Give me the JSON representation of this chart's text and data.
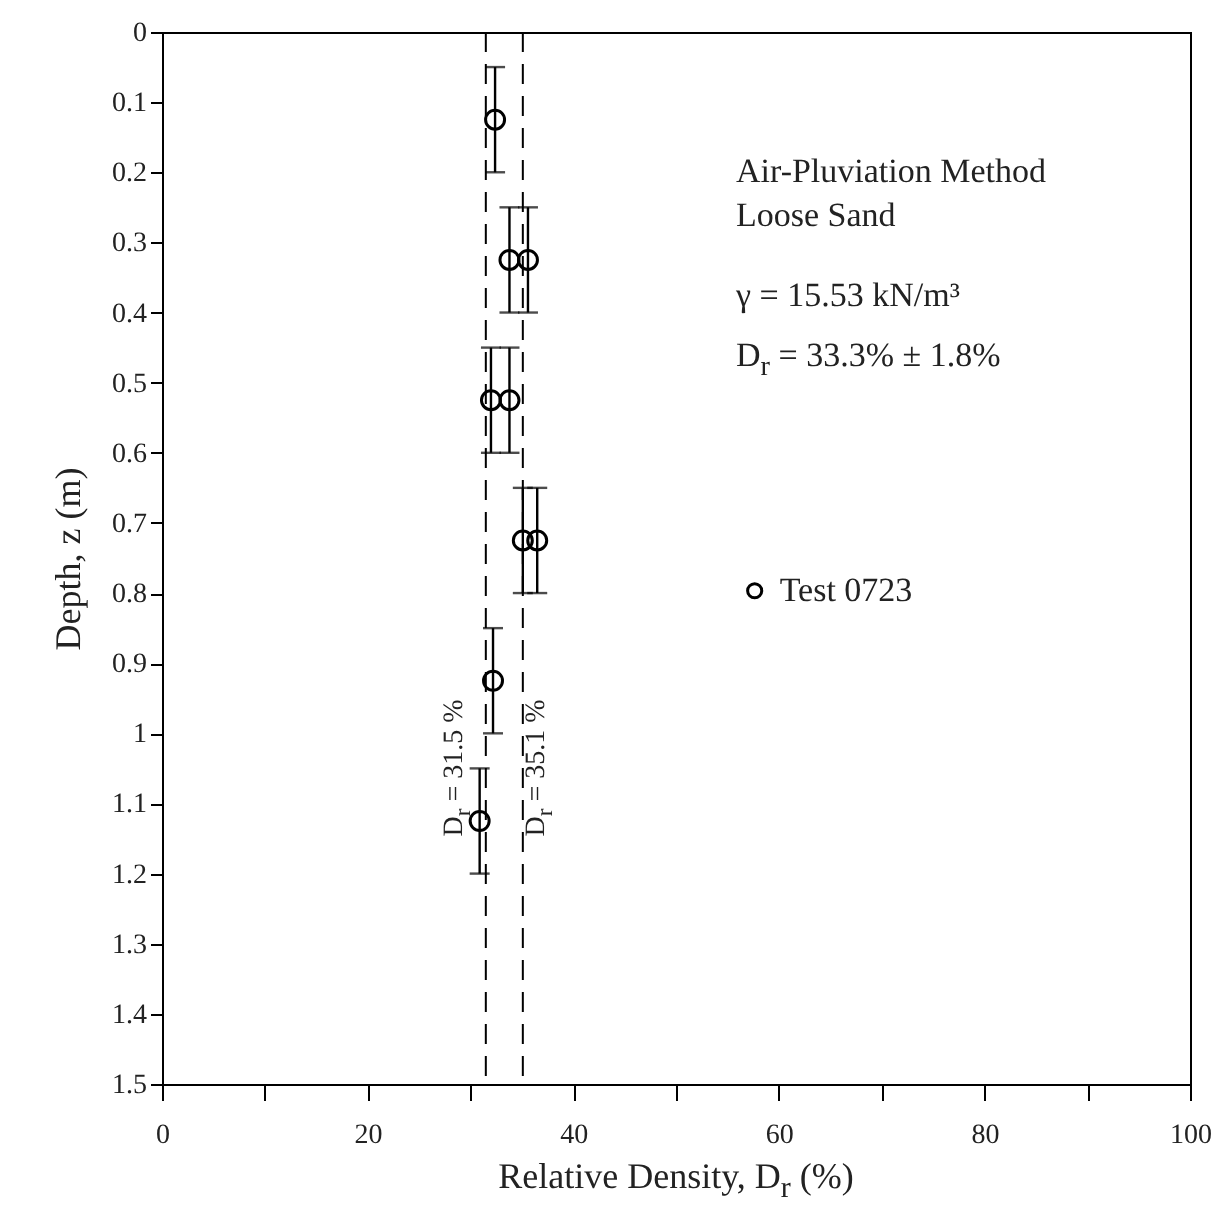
{
  "chart_data": {
    "type": "scatter",
    "xlabel": "Relative Density, D$_{r}$ (%)",
    "ylabel": "Depth, z (m)",
    "xlim": [
      0,
      100
    ],
    "xticks": [
      0,
      {
        "value": 10,
        "label": null
      },
      20,
      {
        "value": 30,
        "label": null
      },
      40,
      {
        "value": 50,
        "label": null
      },
      60,
      {
        "value": 70,
        "label": null
      },
      80,
      {
        "value": 90,
        "label": null
      },
      100
    ],
    "ylim": [
      1.5,
      0
    ],
    "yticks": [
      0,
      0.1,
      0.2,
      0.3,
      0.4,
      0.5,
      0.6,
      0.7,
      0.8,
      0.9,
      1,
      1.1,
      1.2,
      1.3,
      1.4,
      1.5
    ],
    "series": [
      {
        "name": "Test 0723",
        "color": "#000000",
        "x": [
          32.4,
          33.8,
          35.6,
          32.0,
          33.8,
          35.1,
          36.5,
          32.2,
          30.9
        ],
        "values": [
          0.125,
          0.325,
          0.325,
          0.525,
          0.525,
          0.725,
          0.725,
          0.925,
          1.125
        ],
        "errors": [
          0.075,
          0.075,
          0.075,
          0.075,
          0.075,
          0.075,
          0.075,
          0.075,
          0.075
        ]
      }
    ],
    "ref_lines": [
      {
        "axis": "x",
        "value": 31.5,
        "label": "D$_{r}$ = 31.5 %",
        "line_style": "dashed",
        "color": "#000000"
      },
      {
        "axis": "x",
        "value": 35.1,
        "label": "D$_{r}$ = 35.1 %",
        "line_style": "dashed",
        "color": "#000000"
      }
    ],
    "annotations": [
      "Air-Pluviation Method",
      "Loose Sand",
      "γ = 15.53 kN/m³",
      "D$_{r}$ = 33.3% ± 1.8%"
    ],
    "marker": "circle",
    "legend": "right",
    "grid": false
  }
}
